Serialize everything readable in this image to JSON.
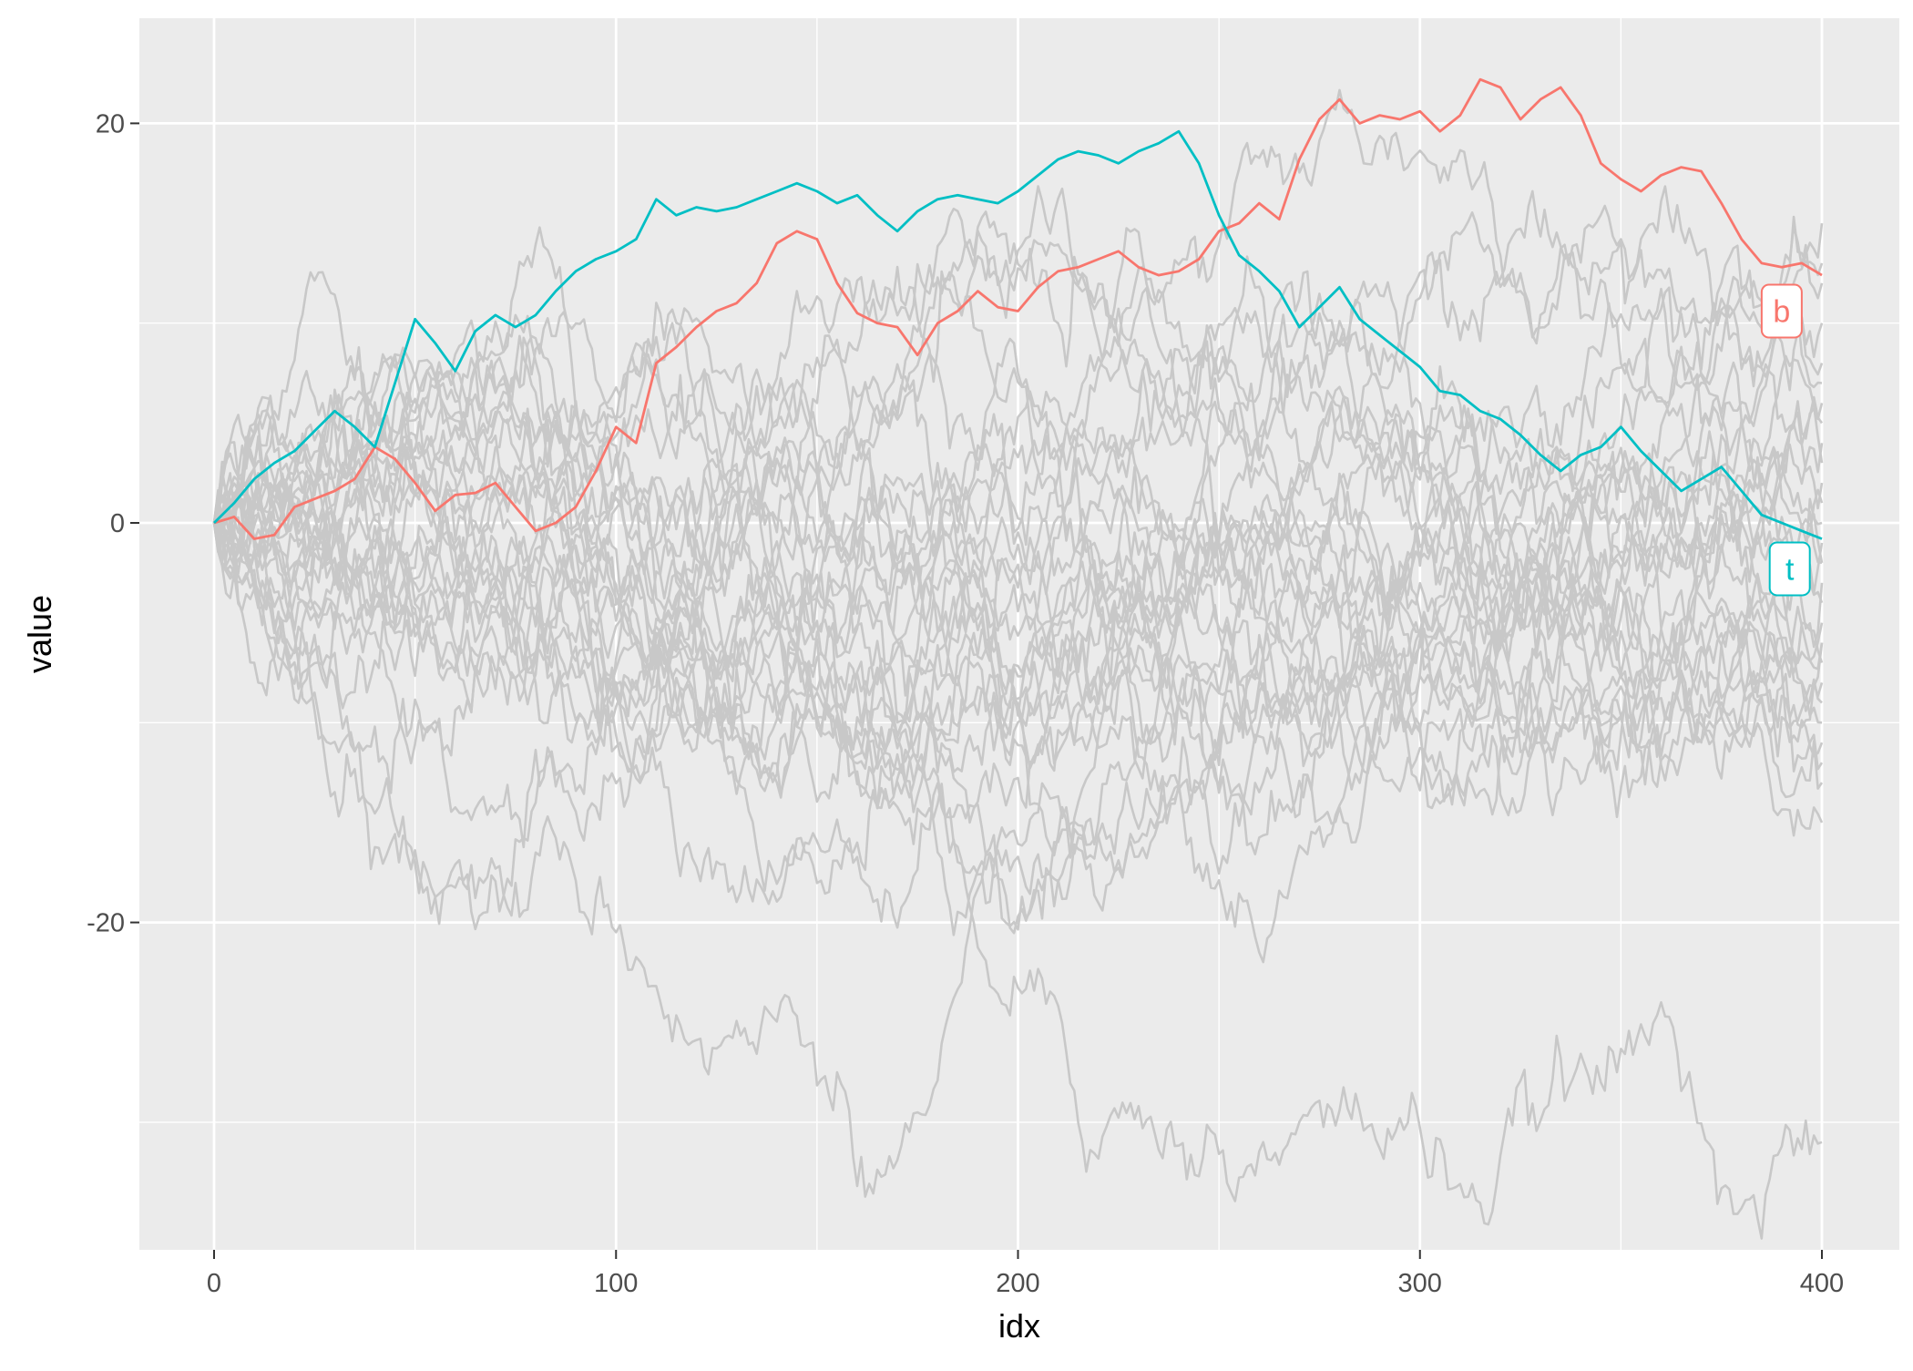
{
  "chart_data": {
    "type": "line",
    "title": "",
    "xlabel": "idx",
    "ylabel": "value",
    "xlim": [
      0,
      400
    ],
    "ylim": [
      -36,
      25.5
    ],
    "xticks": [
      0,
      100,
      200,
      300,
      400
    ],
    "xtick_labels": [
      "0",
      "100",
      "200",
      "300",
      "400"
    ],
    "yticks": [
      -20,
      0,
      20
    ],
    "ytick_labels": [
      "-20",
      "0",
      "20"
    ],
    "grid": true,
    "background_color": "#EBEBEB",
    "grid_color": "#FFFFFF",
    "background_series_color": "#C8C8C8",
    "highlighted_series": [
      {
        "name": "b",
        "color": "#F8766D",
        "x": [
          0,
          5,
          10,
          15,
          20,
          25,
          30,
          35,
          40,
          45,
          50,
          55,
          60,
          65,
          70,
          75,
          80,
          85,
          90,
          95,
          100,
          105,
          110,
          115,
          120,
          125,
          130,
          135,
          140,
          145,
          150,
          155,
          160,
          165,
          170,
          175,
          180,
          185,
          190,
          195,
          200,
          205,
          210,
          215,
          220,
          225,
          230,
          235,
          240,
          245,
          250,
          255,
          260,
          265,
          270,
          275,
          280,
          285,
          290,
          295,
          300,
          305,
          310,
          315,
          320,
          325,
          330,
          335,
          340,
          345,
          350,
          355,
          360,
          365,
          370,
          375,
          380,
          385,
          390,
          395,
          400
        ],
        "y": [
          0,
          0.3,
          -0.8,
          -0.6,
          0.8,
          1.2,
          1.6,
          2.2,
          3.8,
          3.2,
          2.0,
          0.6,
          1.4,
          1.5,
          2.0,
          0.8,
          -0.4,
          0.0,
          0.8,
          2.6,
          4.8,
          4.0,
          8.0,
          8.8,
          9.8,
          10.6,
          11.0,
          12.0,
          14.0,
          14.6,
          14.2,
          12.0,
          10.5,
          10.0,
          9.8,
          8.4,
          10.0,
          10.6,
          11.6,
          10.8,
          10.6,
          11.8,
          12.6,
          12.8,
          13.2,
          13.6,
          12.8,
          12.4,
          12.6,
          13.2,
          14.6,
          15.0,
          16.0,
          15.2,
          18.2,
          20.2,
          21.2,
          20.0,
          20.4,
          20.2,
          20.6,
          19.6,
          20.4,
          22.2,
          21.8,
          20.2,
          21.2,
          21.8,
          20.4,
          18.0,
          17.2,
          16.6,
          17.4,
          17.8,
          17.6,
          16.0,
          14.2,
          13.0,
          12.8,
          13.0,
          12.4
        ]
      },
      {
        "name": "t",
        "color": "#00BFC4",
        "x": [
          0,
          5,
          10,
          15,
          20,
          25,
          30,
          35,
          40,
          45,
          50,
          55,
          60,
          65,
          70,
          75,
          80,
          85,
          90,
          95,
          100,
          105,
          110,
          115,
          120,
          125,
          130,
          135,
          140,
          145,
          150,
          155,
          160,
          165,
          170,
          175,
          180,
          185,
          190,
          195,
          200,
          205,
          210,
          215,
          220,
          225,
          230,
          235,
          240,
          245,
          250,
          255,
          260,
          265,
          270,
          275,
          280,
          285,
          290,
          295,
          300,
          305,
          310,
          315,
          320,
          325,
          330,
          335,
          340,
          345,
          350,
          355,
          360,
          365,
          370,
          375,
          380,
          385,
          390,
          395,
          400
        ],
        "y": [
          0,
          1.0,
          2.2,
          3.0,
          3.6,
          4.6,
          5.6,
          4.8,
          3.8,
          7.0,
          10.2,
          9.0,
          7.6,
          9.6,
          10.4,
          9.8,
          10.4,
          11.6,
          12.6,
          13.2,
          13.6,
          14.2,
          16.2,
          15.4,
          15.8,
          15.6,
          15.8,
          16.2,
          16.6,
          17.0,
          16.6,
          16.0,
          16.4,
          15.4,
          14.6,
          15.6,
          16.2,
          16.4,
          16.2,
          16.0,
          16.6,
          17.4,
          18.2,
          18.6,
          18.4,
          18.0,
          18.6,
          19.0,
          19.6,
          18.0,
          15.4,
          13.4,
          12.6,
          11.6,
          9.8,
          10.8,
          11.8,
          10.2,
          9.4,
          8.6,
          7.8,
          6.6,
          6.4,
          5.6,
          5.2,
          4.4,
          3.4,
          2.6,
          3.4,
          3.8,
          4.8,
          3.6,
          2.6,
          1.6,
          2.2,
          2.8,
          1.6,
          0.4,
          0.0,
          -0.4,
          -0.8
        ]
      }
    ],
    "labels": [
      {
        "text": "b",
        "x": 390,
        "y": 10.6,
        "color": "#F8766D"
      },
      {
        "text": "t",
        "x": 392,
        "y": -2.3,
        "color": "#00BFC4"
      }
    ]
  }
}
